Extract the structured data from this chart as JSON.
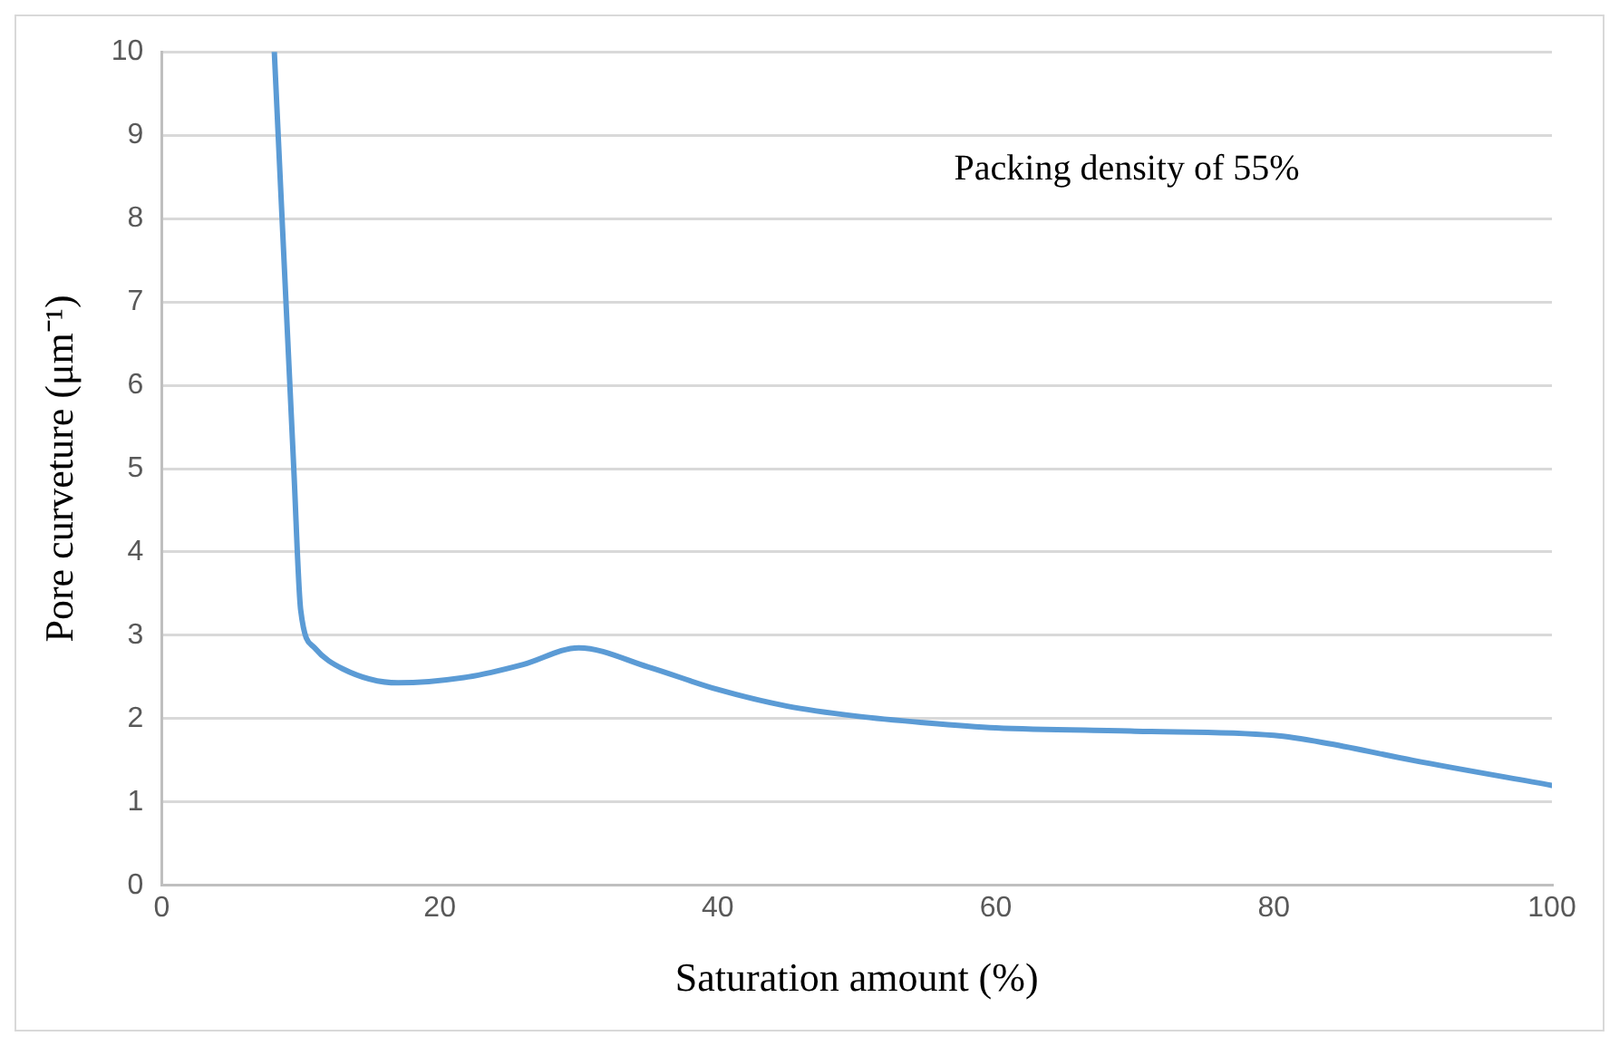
{
  "chart_data": {
    "type": "line",
    "xlabel": "Saturation amount (%)",
    "ylabel": "Pore curveture (μm⁻¹)",
    "annotations": [
      "Packing density of 55%"
    ],
    "series": [
      {
        "color": "#5b9bd5",
        "x": [
          8.1,
          9.5,
          10,
          11,
          13,
          17,
          22,
          26,
          30,
          35,
          40,
          45,
          50,
          55,
          60,
          70,
          80,
          84,
          90,
          100
        ],
        "values": [
          10,
          5,
          3.3,
          2.85,
          2.6,
          2.43,
          2.5,
          2.65,
          2.85,
          2.62,
          2.35,
          2.15,
          2.03,
          1.95,
          1.89,
          1.85,
          1.8,
          1.7,
          1.5,
          1.2
        ]
      }
    ],
    "xlim": [
      0,
      100
    ],
    "xticks": [
      0,
      20,
      40,
      60,
      80,
      100
    ],
    "ylim": [
      0,
      10
    ],
    "yticks": [
      0,
      1,
      2,
      3,
      4,
      5,
      6,
      7,
      8,
      9,
      10
    ],
    "grid": "y",
    "legend": false,
    "marker": "none",
    "line_style": "solid"
  }
}
